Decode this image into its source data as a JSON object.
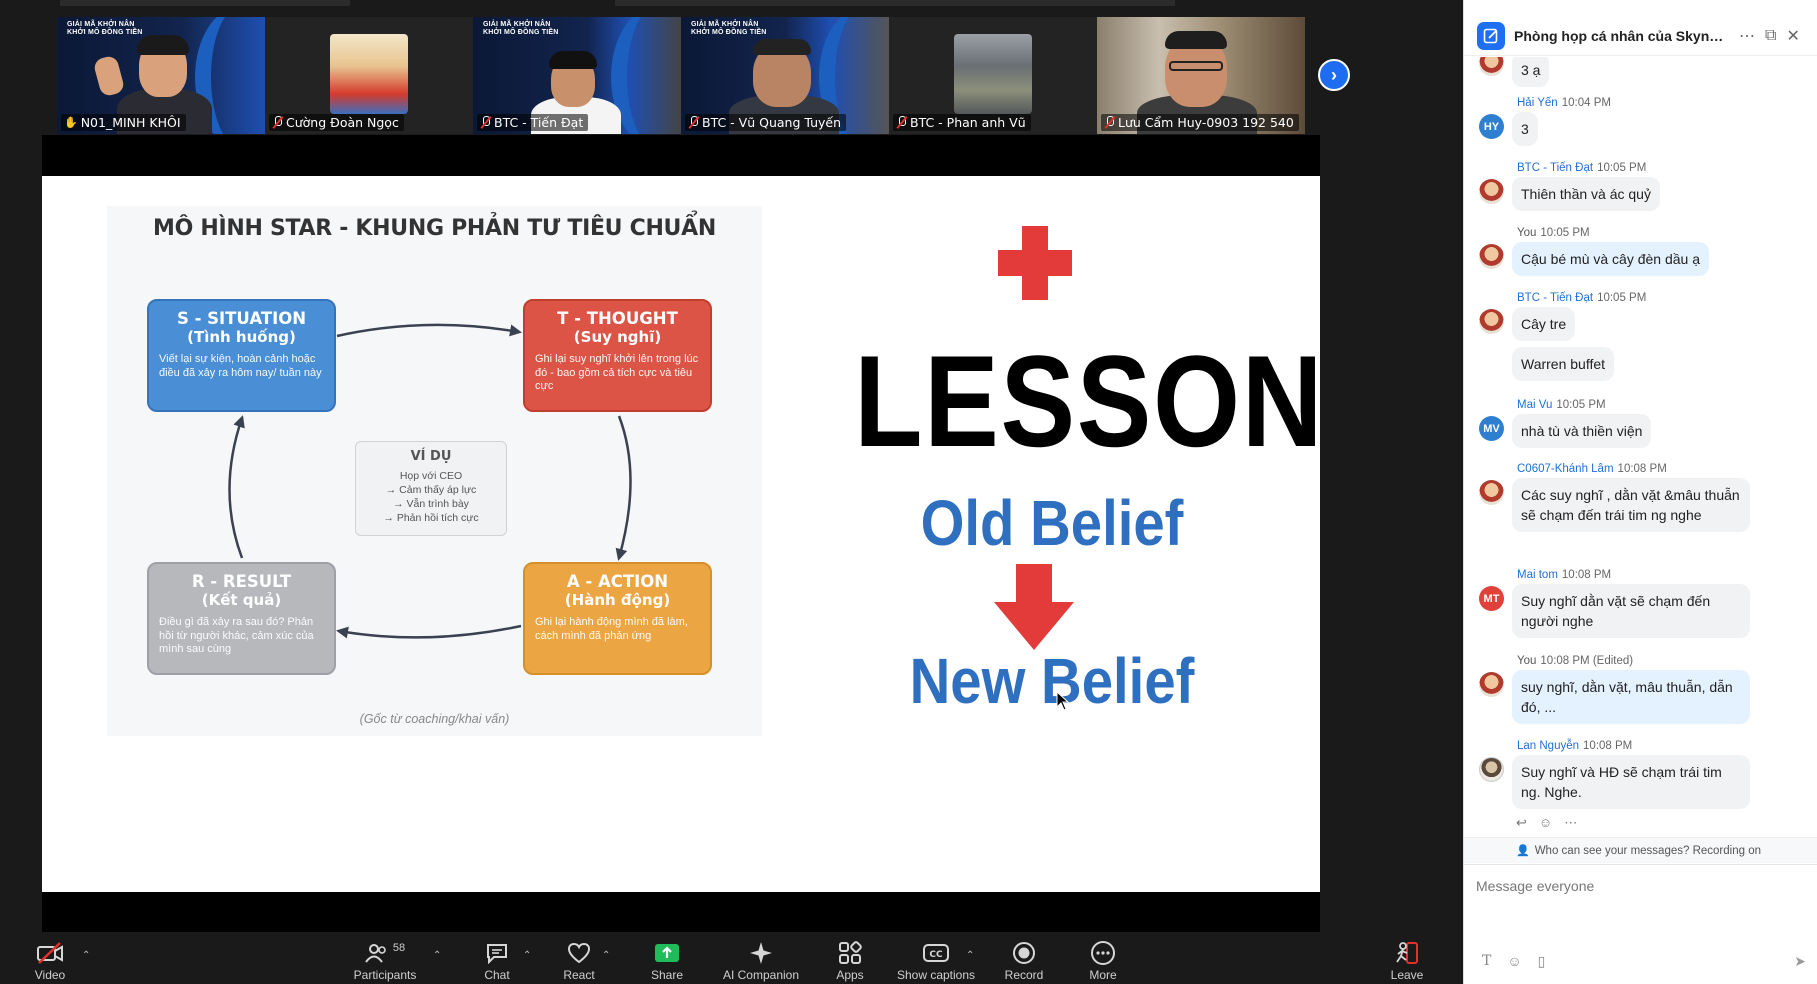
{
  "participants": [
    {
      "name": "N01_MINH KHÔI",
      "active": true
    },
    {
      "name": "Cường Đoàn Ngọc",
      "active": false
    },
    {
      "name": "BTC - Tiến Đạt",
      "active": false
    },
    {
      "name": "BTC - Vũ Quang Tuyến",
      "active": false
    },
    {
      "name": "BTC - Phan anh Vũ",
      "active": false
    },
    {
      "name": "Lưu Cẩm Huy-0903 192 540",
      "active": false
    }
  ],
  "slide": {
    "star": {
      "title": "MÔ HÌNH STAR - KHUNG PHẢN TƯ TIÊU CHUẨN",
      "situation": {
        "title": "S - SITUATION",
        "sub": "(Tình huống)",
        "desc": "Viết lại sự kiện, hoàn cảnh hoặc điều đã xảy ra hôm nay/ tuần này"
      },
      "thought": {
        "title": "T - THOUGHT",
        "sub": "(Suy nghĩ)",
        "desc": "Ghi lại suy nghĩ khởi lên trong lúc đó - bao gồm cả tích cực và tiêu cực"
      },
      "action": {
        "title": "A - ACTION",
        "sub": "(Hành động)",
        "desc": "Ghi lại hành động mình đã làm, cách mình đã phản ứng"
      },
      "result": {
        "title": "R - RESULT",
        "sub": "(Kết quả)",
        "desc": "Điều gì đã xảy ra sau đó? Phản hồi từ người khác, cảm xúc của mình sau cùng"
      },
      "example": {
        "title": "VÍ DỤ",
        "lines": [
          "Họp với CEO",
          "→ Cảm thấy áp lực",
          "→ Vẫn trình bày",
          "→ Phản hồi tích cực"
        ]
      },
      "footer": "(Gốc từ coaching/khai vấn)"
    },
    "lesson": {
      "word": "LESSON",
      "old": "Old Belief",
      "new": "New Belief"
    }
  },
  "toolbar": {
    "video": "Video",
    "participants": "Participants",
    "participants_count": "58",
    "chat": "Chat",
    "react": "React",
    "share": "Share",
    "ai": "AI Companion",
    "apps": "Apps",
    "captions": "Show captions",
    "record": "Record",
    "more": "More",
    "leave": "Leave"
  },
  "chat": {
    "title": "Phòng họp cá nhân của Skynext....",
    "messages": [
      {
        "sender": "",
        "time": "",
        "text": "3 ạ",
        "avatar": "img"
      },
      {
        "sender": "Hải Yến",
        "time": "10:04 PM",
        "text": "3",
        "avatar": "HY",
        "color": "#2e7fd0"
      },
      {
        "sender": "BTC - Tiến Đạt",
        "time": "10:05 PM",
        "text": "Thiên thần và ác quỷ",
        "avatar": "img"
      },
      {
        "sender": "You",
        "time": "10:05 PM",
        "text": "Cậu bé mù và cây đèn dầu ạ",
        "avatar": "img"
      },
      {
        "sender": "BTC - Tiến Đạt",
        "time": "10:05 PM",
        "text": "Cây tre",
        "avatar": "img"
      },
      {
        "sender": "",
        "time": "",
        "text": "Warren buffet",
        "avatar": ""
      },
      {
        "sender": "Mai Vu",
        "time": "10:05 PM",
        "text": "nhà tù và thiền viện",
        "avatar": "MV",
        "color": "#2e7fd0"
      },
      {
        "sender": "C0607-Khánh Lâm",
        "time": "10:08 PM",
        "text": "Các suy nghĩ , dằn vặt &mâu thuẫn sẽ chạm đến trái tim ng nghe",
        "avatar": "img"
      },
      {
        "sender": "Mai tom",
        "time": "10:08 PM",
        "text": "Suy nghĩ dằn vặt sẽ chạm đến người nghe",
        "avatar": "MT",
        "color": "#e0413a"
      },
      {
        "sender": "You",
        "time": "10:08 PM (Edited)",
        "text": "suy nghĩ, dằn vặt, mâu thuẫn, dẫn đó, ...",
        "avatar": "img"
      },
      {
        "sender": "Lan Nguyễn",
        "time": "10:08 PM",
        "text": "Suy nghĩ và HĐ sẽ chạm trái tim ng. Nghe.",
        "avatar": "lan"
      }
    ],
    "privacy": "Who can see your messages? Recording on",
    "placeholder": "Message everyone"
  }
}
